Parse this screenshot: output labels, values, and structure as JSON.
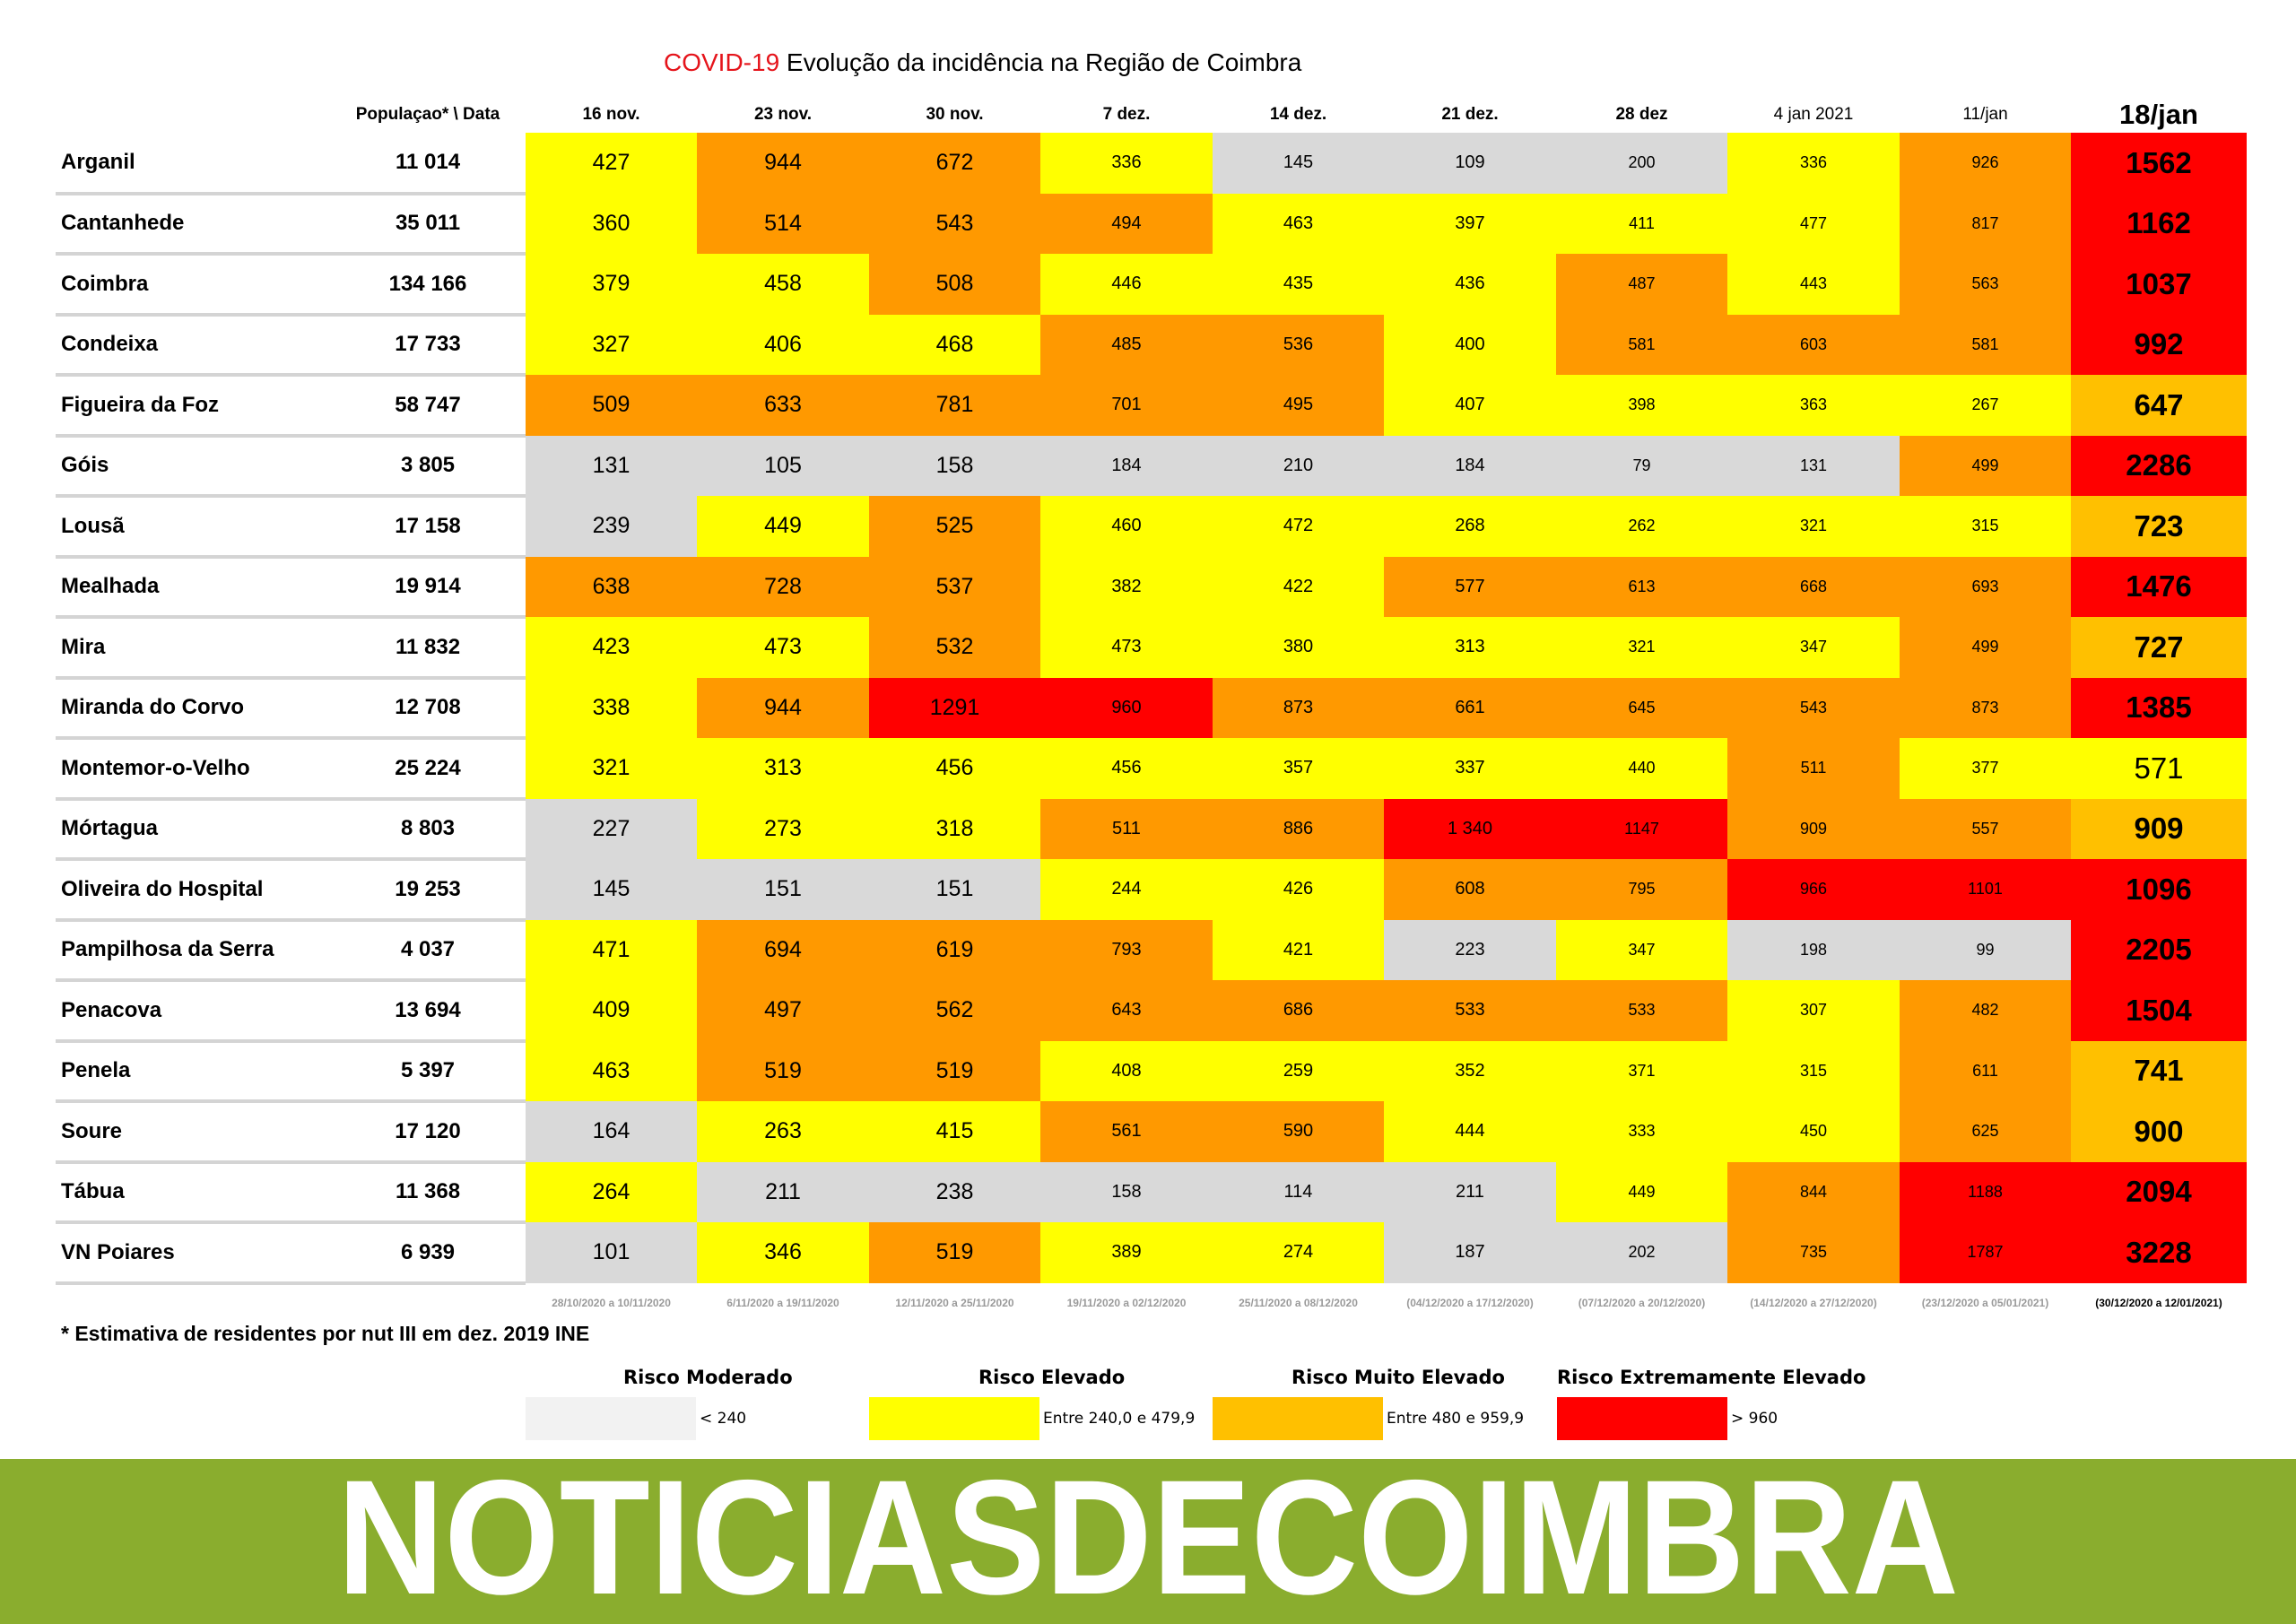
{
  "title": {
    "accent": "COVID-19",
    "text": " Evolução da incidência na Região de Coimbra"
  },
  "header": {
    "population": "Populaçao* \\ Data",
    "dates": [
      "16 nov.",
      "23 nov.",
      "30 nov.",
      "7 dez.",
      "14 dez.",
      "21 dez.",
      "28 dez",
      "4 jan 2021",
      "11/jan",
      "18/jan"
    ]
  },
  "rows": [
    {
      "name": "Arganil",
      "population": "11 014",
      "values": [
        "427",
        "944",
        "672",
        "336",
        "145",
        "109",
        "200",
        "336",
        "926",
        "1562"
      ],
      "levels": [
        "yellow",
        "orange",
        "orange",
        "yellow",
        "grey",
        "grey",
        "grey",
        "yellow",
        "orange",
        "red"
      ]
    },
    {
      "name": "Cantanhede",
      "population": "35 011",
      "values": [
        "360",
        "514",
        "543",
        "494",
        "463",
        "397",
        "411",
        "477",
        "817",
        "1162"
      ],
      "levels": [
        "yellow",
        "orange",
        "orange",
        "orange",
        "yellow",
        "yellow",
        "yellow",
        "yellow",
        "orange",
        "red"
      ]
    },
    {
      "name": "Coimbra",
      "population": "134 166",
      "values": [
        "379",
        "458",
        "508",
        "446",
        "435",
        "436",
        "487",
        "443",
        "563",
        "1037"
      ],
      "levels": [
        "yellow",
        "yellow",
        "orange",
        "yellow",
        "yellow",
        "yellow",
        "orange",
        "yellow",
        "orange",
        "red"
      ]
    },
    {
      "name": "Condeixa",
      "population": "17 733",
      "values": [
        "327",
        "406",
        "468",
        "485",
        "536",
        "400",
        "581",
        "603",
        "581",
        "992"
      ],
      "levels": [
        "yellow",
        "yellow",
        "yellow",
        "orange",
        "orange",
        "yellow",
        "orange",
        "orange",
        "orange",
        "red"
      ]
    },
    {
      "name": "Figueira da Foz",
      "population": "58 747",
      "values": [
        "509",
        "633",
        "781",
        "701",
        "495",
        "407",
        "398",
        "363",
        "267",
        "647"
      ],
      "levels": [
        "orange",
        "orange",
        "orange",
        "orange",
        "orange",
        "yellow",
        "yellow",
        "yellow",
        "yellow",
        "amber"
      ]
    },
    {
      "name": "Góis",
      "population": "3 805",
      "values": [
        "131",
        "105",
        "158",
        "184",
        "210",
        "184",
        "79",
        "131",
        "499",
        "2286"
      ],
      "levels": [
        "grey",
        "grey",
        "grey",
        "grey",
        "grey",
        "grey",
        "grey",
        "grey",
        "orange",
        "red"
      ]
    },
    {
      "name": "Lousã",
      "population": "17 158",
      "values": [
        "239",
        "449",
        "525",
        "460",
        "472",
        "268",
        "262",
        "321",
        "315",
        "723"
      ],
      "levels": [
        "grey",
        "yellow",
        "orange",
        "yellow",
        "yellow",
        "yellow",
        "yellow",
        "yellow",
        "yellow",
        "amber"
      ]
    },
    {
      "name": "Mealhada",
      "population": "19 914",
      "values": [
        "638",
        "728",
        "537",
        "382",
        "422",
        "577",
        "613",
        "668",
        "693",
        "1476"
      ],
      "levels": [
        "orange",
        "orange",
        "orange",
        "yellow",
        "yellow",
        "orange",
        "orange",
        "orange",
        "orange",
        "red"
      ]
    },
    {
      "name": "Mira",
      "population": "11 832",
      "values": [
        "423",
        "473",
        "532",
        "473",
        "380",
        "313",
        "321",
        "347",
        "499",
        "727"
      ],
      "levels": [
        "yellow",
        "yellow",
        "orange",
        "yellow",
        "yellow",
        "yellow",
        "yellow",
        "yellow",
        "orange",
        "amber"
      ]
    },
    {
      "name": "Miranda do Corvo",
      "population": "12 708",
      "values": [
        "338",
        "944",
        "1291",
        "960",
        "873",
        "661",
        "645",
        "543",
        "873",
        "1385"
      ],
      "levels": [
        "yellow",
        "orange",
        "red",
        "red",
        "orange",
        "orange",
        "orange",
        "orange",
        "orange",
        "red"
      ]
    },
    {
      "name": "Montemor-o-Velho",
      "population": "25 224",
      "values": [
        "321",
        "313",
        "456",
        "456",
        "357",
        "337",
        "440",
        "511",
        "377",
        "571"
      ],
      "levels": [
        "yellow",
        "yellow",
        "yellow",
        "yellow",
        "yellow",
        "yellow",
        "yellow",
        "orange",
        "yellow",
        "yellow"
      ]
    },
    {
      "name": "Mórtagua",
      "population": "8 803",
      "values": [
        "227",
        "273",
        "318",
        "511",
        "886",
        "1 340",
        "1147",
        "909",
        "557",
        "909"
      ],
      "levels": [
        "grey",
        "yellow",
        "yellow",
        "orange",
        "orange",
        "red",
        "red",
        "orange",
        "orange",
        "amber"
      ]
    },
    {
      "name": "Oliveira do Hospital",
      "population": "19 253",
      "values": [
        "145",
        "151",
        "151",
        "244",
        "426",
        "608",
        "795",
        "966",
        "1101",
        "1096"
      ],
      "levels": [
        "grey",
        "grey",
        "grey",
        "yellow",
        "yellow",
        "orange",
        "orange",
        "red",
        "red",
        "red"
      ]
    },
    {
      "name": "Pampilhosa da Serra",
      "population": "4 037",
      "values": [
        "471",
        "694",
        "619",
        "793",
        "421",
        "223",
        "347",
        "198",
        "99",
        "2205"
      ],
      "levels": [
        "yellow",
        "orange",
        "orange",
        "orange",
        "yellow",
        "grey",
        "yellow",
        "grey",
        "grey",
        "red"
      ]
    },
    {
      "name": "Penacova",
      "population": "13 694",
      "values": [
        "409",
        "497",
        "562",
        "643",
        "686",
        "533",
        "533",
        "307",
        "482",
        "1504"
      ],
      "levels": [
        "yellow",
        "orange",
        "orange",
        "orange",
        "orange",
        "orange",
        "orange",
        "yellow",
        "orange",
        "red"
      ]
    },
    {
      "name": "Penela",
      "population": "5 397",
      "values": [
        "463",
        "519",
        "519",
        "408",
        "259",
        "352",
        "371",
        "315",
        "611",
        "741"
      ],
      "levels": [
        "yellow",
        "orange",
        "orange",
        "yellow",
        "yellow",
        "yellow",
        "yellow",
        "yellow",
        "orange",
        "amber"
      ]
    },
    {
      "name": "Soure",
      "population": "17 120",
      "values": [
        "164",
        "263",
        "415",
        "561",
        "590",
        "444",
        "333",
        "450",
        "625",
        "900"
      ],
      "levels": [
        "grey",
        "yellow",
        "yellow",
        "orange",
        "orange",
        "yellow",
        "yellow",
        "yellow",
        "orange",
        "amber"
      ]
    },
    {
      "name": "Tábua",
      "population": "11 368",
      "values": [
        "264",
        "211",
        "238",
        "158",
        "114",
        "211",
        "449",
        "844",
        "1188",
        "2094"
      ],
      "levels": [
        "yellow",
        "grey",
        "grey",
        "grey",
        "grey",
        "grey",
        "yellow",
        "orange",
        "red",
        "red"
      ]
    },
    {
      "name": "VN Poiares",
      "population": "6 939",
      "values": [
        "101",
        "346",
        "519",
        "389",
        "274",
        "187",
        "202",
        "735",
        "1787",
        "3228"
      ],
      "levels": [
        "grey",
        "yellow",
        "orange",
        "yellow",
        "yellow",
        "grey",
        "grey",
        "orange",
        "red",
        "red"
      ]
    }
  ],
  "periods": [
    "28/10/2020 a 10/11/2020",
    "6/11/2020 a 19/11/2020",
    "12/11/2020 a 25/11/2020",
    "19/11/2020 a 02/12/2020",
    "25/11/2020 a 08/12/2020",
    "(04/12/2020 a 17/12/2020)",
    "(07/12/2020 a 20/12/2020)",
    "(14/12/2020 a 27/12/2020)",
    "(23/12/2020 a 05/01/2021)",
    "(30/12/2020 a 12/01/2021)"
  ],
  "footnote": "* Estimativa de residentes por nut III em dez. 2019 INE",
  "legend": [
    {
      "title": "Risco Moderado",
      "text": "< 240",
      "color": "#f2f2f2"
    },
    {
      "title": "Risco Elevado",
      "text": "Entre 240,0 e 479,9",
      "color": "#ffff00"
    },
    {
      "title": "Risco Muito Elevado",
      "text": "Entre 480 e 959,9",
      "color": "#ffc000"
    },
    {
      "title": "Risco Extremamente Elevado",
      "text": "> 960",
      "color": "#ff0000"
    }
  ],
  "banner": {
    "logo_text": "NOTICIASDECOIMBRA",
    "color": "#8aad2e"
  },
  "colors": {
    "grey": "#d9d9d9",
    "yellow": "#ffff00",
    "orange": "#ff9900",
    "amber": "#ffc000",
    "red": "#ff0000",
    "title_accent": "#e5141b"
  }
}
